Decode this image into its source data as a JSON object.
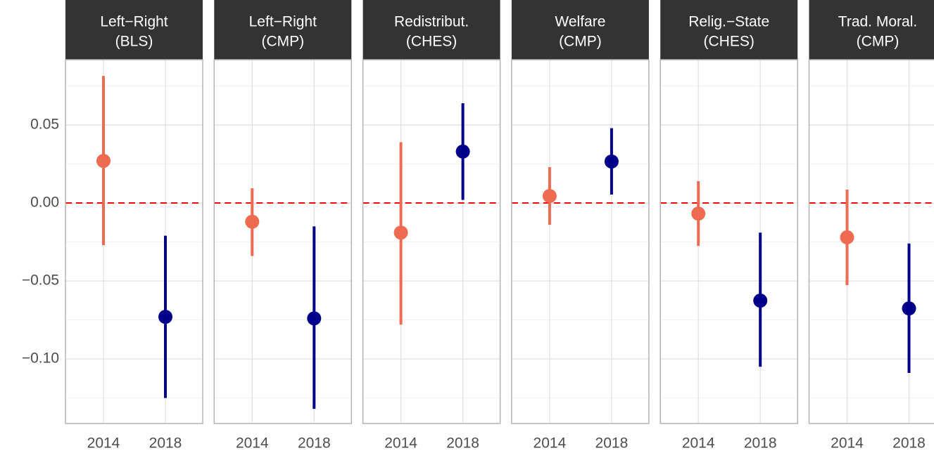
{
  "chart_data": [
    {
      "type": "pointrange",
      "title": "Left−Right",
      "subtitle": "(BLS)",
      "categories": [
        "2014",
        "2018"
      ],
      "values": [
        0.027,
        -0.073
      ],
      "lower": [
        -0.027,
        -0.125
      ],
      "upper": [
        0.0815,
        -0.021
      ],
      "colors": [
        "#ee6a50",
        "#00008b"
      ],
      "ylim": [
        -0.1414,
        0.0919
      ],
      "yticks": [
        0.05,
        {
          "value": 0,
          "label": "0.00"
        },
        {
          "value": -0.05,
          "label": "−0.05"
        },
        {
          "value": -0.1,
          "label": "−0.10"
        }
      ],
      "minor_yticks": [
        0.075,
        0.025,
        -0.025,
        -0.075,
        -0.125
      ],
      "reference_line": 0,
      "reference_color": "#ff0000",
      "grid": true
    },
    {
      "type": "pointrange",
      "title": "Left−Right",
      "subtitle": "(CMP)",
      "categories": [
        "2014",
        "2018"
      ],
      "values": [
        -0.012,
        -0.074
      ],
      "lower": [
        -0.034,
        -0.132
      ],
      "upper": [
        0.0095,
        -0.015
      ],
      "colors": [
        "#ee6a50",
        "#00008b"
      ],
      "ylim": [
        -0.1414,
        0.0919
      ],
      "yticks": [
        0.05,
        0,
        -0.05,
        -0.1
      ],
      "minor_yticks": [
        0.075,
        0.025,
        -0.025,
        -0.075,
        -0.125
      ],
      "reference_line": 0,
      "reference_color": "#ff0000",
      "grid": true
    },
    {
      "type": "pointrange",
      "title": "Redistribut.",
      "subtitle": "(CHES)",
      "categories": [
        "2014",
        "2018"
      ],
      "values": [
        -0.019,
        0.033
      ],
      "lower": [
        -0.078,
        0.002
      ],
      "upper": [
        0.039,
        0.064
      ],
      "colors": [
        "#ee6a50",
        "#00008b"
      ],
      "ylim": [
        -0.1414,
        0.0919
      ],
      "yticks": [
        0.05,
        0,
        -0.05,
        -0.1
      ],
      "minor_yticks": [
        0.075,
        0.025,
        -0.025,
        -0.075,
        -0.125
      ],
      "reference_line": 0,
      "reference_color": "#ff0000",
      "grid": true
    },
    {
      "type": "pointrange",
      "title": "Welfare",
      "subtitle": "(CMP)",
      "categories": [
        "2014",
        "2018"
      ],
      "values": [
        0.0045,
        0.0266
      ],
      "lower": [
        -0.014,
        0.0054
      ],
      "upper": [
        0.023,
        0.048
      ],
      "colors": [
        "#ee6a50",
        "#00008b"
      ],
      "ylim": [
        -0.1414,
        0.0919
      ],
      "yticks": [
        0.05,
        0,
        -0.05,
        -0.1
      ],
      "minor_yticks": [
        0.075,
        0.025,
        -0.025,
        -0.075,
        -0.125
      ],
      "reference_line": 0,
      "reference_color": "#ff0000",
      "grid": true
    },
    {
      "type": "pointrange",
      "title": "Relig.−State",
      "subtitle": "(CHES)",
      "categories": [
        "2014",
        "2018"
      ],
      "values": [
        -0.0068,
        -0.0626
      ],
      "lower": [
        -0.0275,
        -0.105
      ],
      "upper": [
        0.014,
        -0.019
      ],
      "colors": [
        "#ee6a50",
        "#00008b"
      ],
      "ylim": [
        -0.1414,
        0.0919
      ],
      "yticks": [
        0.05,
        0,
        -0.05,
        -0.1
      ],
      "minor_yticks": [
        0.075,
        0.025,
        -0.025,
        -0.075,
        -0.125
      ],
      "reference_line": 0,
      "reference_color": "#ff0000",
      "grid": true
    },
    {
      "type": "pointrange",
      "title": "Trad. Moral.",
      "subtitle": "(CMP)",
      "categories": [
        "2014",
        "2018"
      ],
      "values": [
        -0.022,
        -0.0676
      ],
      "lower": [
        -0.0527,
        -0.109
      ],
      "upper": [
        0.0086,
        -0.026
      ],
      "colors": [
        "#ee6a50",
        "#00008b"
      ],
      "ylim": [
        -0.1414,
        0.0919
      ],
      "yticks": [
        0.05,
        0,
        -0.05,
        -0.1
      ],
      "minor_yticks": [
        0.075,
        0.025,
        -0.025,
        -0.075,
        -0.125
      ],
      "reference_line": 0,
      "reference_color": "#ff0000",
      "grid": true
    }
  ]
}
